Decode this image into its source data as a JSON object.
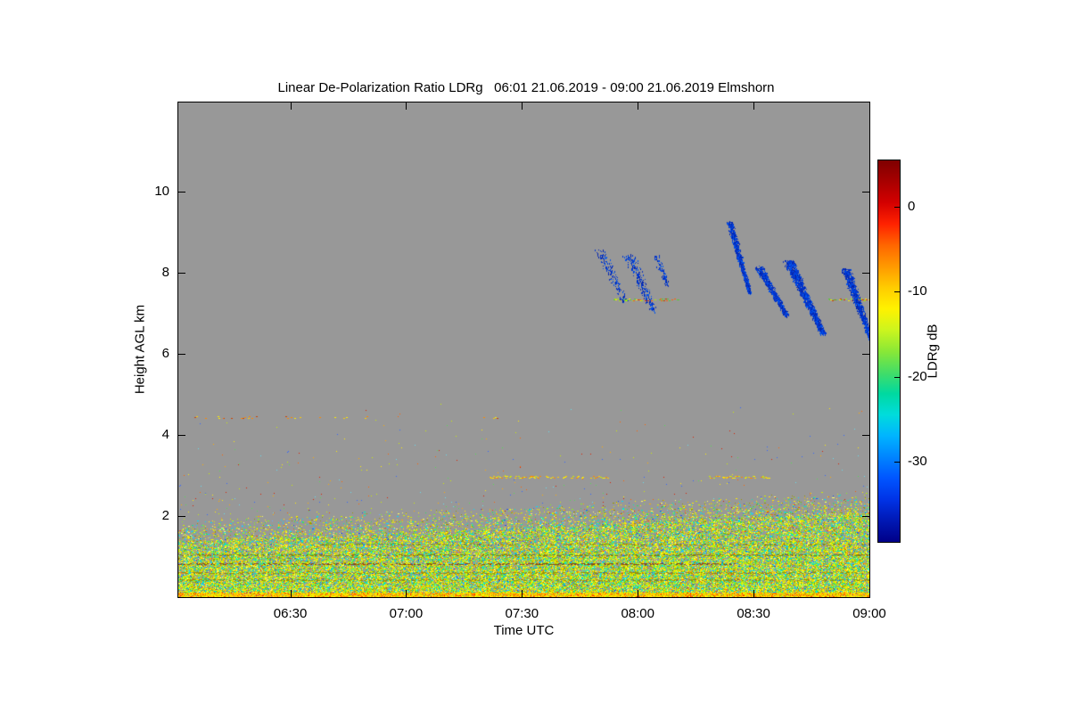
{
  "page": {
    "background": "#ffffff"
  },
  "chart_data": {
    "type": "heatmap",
    "title": "Linear De-Polarization Ratio LDRg   06:01 21.06.2019 - 09:00 21.06.2019 Elmshorn",
    "xlabel": "Time UTC",
    "ylabel": "Height AGL km",
    "x_ticks": [
      "06:30",
      "07:00",
      "07:30",
      "08:00",
      "08:30",
      "09:00"
    ],
    "x_tick_minutes": [
      390,
      420,
      450,
      480,
      510,
      540
    ],
    "x_range_minutes": [
      361,
      540
    ],
    "y_ticks": [
      2,
      4,
      6,
      8,
      10
    ],
    "y_range_km": [
      0,
      12.2
    ],
    "grid": false,
    "plot_background": "#989898",
    "colorbar": {
      "label": "LDRg dB",
      "ticks": [
        0,
        -10,
        -20,
        -30
      ],
      "range": [
        5.5,
        -39.5
      ],
      "position": "right",
      "colors_top_to_bottom": [
        "#7f0000",
        "#a80000",
        "#d40000",
        "#ff2200",
        "#ff6600",
        "#ff9900",
        "#ffcc00",
        "#fff200",
        "#ccf51e",
        "#8ae836",
        "#44dd66",
        "#00d9a0",
        "#00dcdc",
        "#00b4ff",
        "#0084ff",
        "#0055ff",
        "#0033e6",
        "#0018b4",
        "#000088"
      ]
    },
    "features": {
      "description": "Gray background = no signal. Dense multicolored boundary-layer echo below ~2 km deepening with time; sparse colored speckle to ~5 km; thin horizontal artifact lines at ~3.0, ~4.45 and ~7.35 km; dark blue fall-streak cloud echoes between ~6.4 and ~9.3 km from ~07:50 to 09:00.",
      "boundary_layer": {
        "dense_top_km": [
          1.35,
          2.1
        ],
        "speckle_top_km": [
          1.95,
          2.65
        ],
        "palette": [
          {
            "color": "#ffee00",
            "w": 20
          },
          {
            "color": "#ccee00",
            "w": 16
          },
          {
            "color": "#88ee22",
            "w": 10
          },
          {
            "color": "#33dd66",
            "w": 7
          },
          {
            "color": "#00eebb",
            "w": 7
          },
          {
            "color": "#00ddff",
            "w": 9
          },
          {
            "color": "#999900",
            "w": 10
          },
          {
            "color": "#ffaa00",
            "w": 6
          },
          {
            "color": "#ff5500",
            "w": 2
          },
          {
            "color": "#2255ee",
            "w": 3
          },
          {
            "color": "#66aaff",
            "w": 2
          },
          {
            "color": "#ffff66",
            "w": 8
          }
        ],
        "surface_palette": [
          {
            "color": "#ffcc00",
            "w": 8
          },
          {
            "color": "#ffee00",
            "w": 8
          },
          {
            "color": "#ff8800",
            "w": 5
          },
          {
            "color": "#ff3300",
            "w": 3
          },
          {
            "color": "#aaee00",
            "w": 3
          }
        ]
      },
      "dark_bands": [
        {
          "km": 0.83,
          "t0": 361,
          "t1": 505,
          "color": "#8a4a14",
          "density": 0.45
        },
        {
          "km": 1.06,
          "t0": 361,
          "t1": 540,
          "color": "#7d7d14",
          "density": 0.4
        },
        {
          "km": 0.45,
          "t0": 361,
          "t1": 540,
          "color": "#8f8f10",
          "density": 0.4
        },
        {
          "km": 1.32,
          "t0": 395,
          "t1": 540,
          "color": "#86861c",
          "density": 0.3
        },
        {
          "km": 0.62,
          "t0": 361,
          "t1": 540,
          "color": "#9a8a10",
          "density": 0.35
        }
      ],
      "artifact_lines": [
        {
          "km": 7.35,
          "density": 0.55,
          "colors": [
            "#aaee00",
            "#ffee00",
            "#55cc33",
            "#ff6600",
            "#dd3300"
          ],
          "segments": [
            [
              473.7,
              491.2
            ],
            [
              529.2,
              540
            ]
          ]
        },
        {
          "km": 2.97,
          "density": 0.5,
          "colors": [
            "#ffee00",
            "#ffcc00",
            "#ff8800",
            "#ccee00"
          ],
          "segments": [
            [
              441.4,
              472.3
            ],
            [
              498.4,
              514.1
            ]
          ]
        },
        {
          "km": 4.45,
          "density": 0.12,
          "colors": [
            "#ff8800",
            "#ffee00",
            "#cc4400",
            "#ffcc00"
          ],
          "segments": [
            [
              361,
              412
            ],
            [
              439.5,
              444.2
            ]
          ]
        }
      ],
      "virga_colors": [
        "#0033cc",
        "#0040dd",
        "#1133bb",
        "#0055ee",
        "#0022aa"
      ],
      "virga_streaks": [
        {
          "t0": 470.0,
          "t1": 476.5,
          "km_top": 8.6,
          "km_bot": 7.3,
          "spread": 2.0,
          "dots": 160
        },
        {
          "t0": 477.7,
          "t1": 484.1,
          "km_top": 8.45,
          "km_bot": 7.05,
          "spread": 2.2,
          "dots": 260
        },
        {
          "t0": 484.8,
          "t1": 487.5,
          "km_top": 8.45,
          "km_bot": 7.7,
          "spread": 1.2,
          "dots": 90
        },
        {
          "t0": 503.8,
          "t1": 509.0,
          "km_top": 9.25,
          "km_bot": 7.5,
          "spread": 1.0,
          "dots": 900
        },
        {
          "t0": 511.2,
          "t1": 518.6,
          "km_top": 8.15,
          "km_bot": 6.95,
          "spread": 1.4,
          "dots": 700
        },
        {
          "t0": 519.0,
          "t1": 528.0,
          "km_top": 8.3,
          "km_bot": 6.5,
          "spread": 1.6,
          "dots": 1500
        },
        {
          "t0": 533.8,
          "t1": 540.5,
          "km_top": 8.1,
          "km_bot": 6.35,
          "spread": 1.5,
          "dots": 1000
        }
      ],
      "scatter_speckle": {
        "count": 420,
        "km_min": 2.05,
        "km_max": 5.1,
        "colors": [
          "#ffee00",
          "#ffaa00",
          "#ff6600",
          "#66ddee",
          "#55dd55",
          "#3366ff",
          "#dd2200",
          "#ccee00"
        ]
      }
    }
  }
}
